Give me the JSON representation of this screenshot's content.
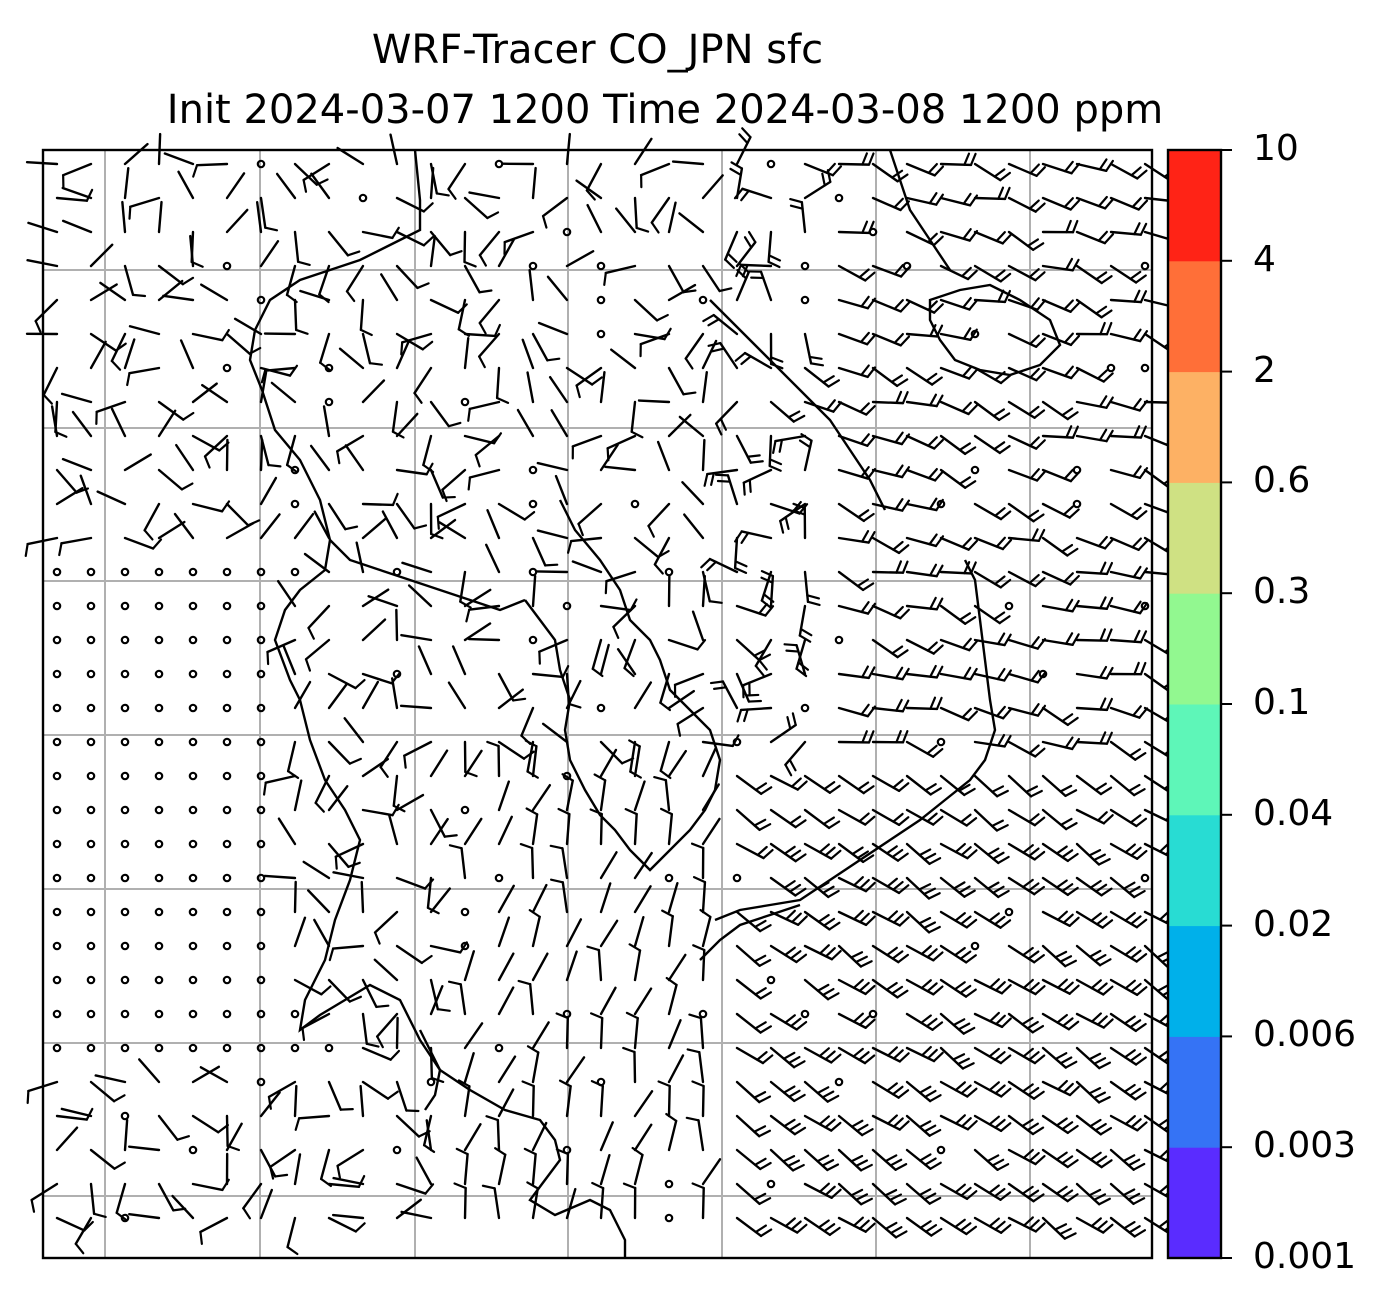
{
  "title": {
    "line1": "WRF-Tracer CO_JPN sfc",
    "line2": "Init 2024-03-07 1200 Time 2024-03-08 1200 ppm"
  },
  "colorbar": {
    "levels": [
      "0.001",
      "0.003",
      "0.006",
      "0.02",
      "0.04",
      "0.1",
      "0.3",
      "0.6",
      "2",
      "4",
      "10"
    ],
    "colors": [
      "#5a2cff",
      "#3573f5",
      "#00b0ea",
      "#28dcd3",
      "#5ef6b8",
      "#92f890",
      "#cfe183",
      "#fdb164",
      "#ff6f38",
      "#ff2316"
    ]
  },
  "map": {
    "background": "#ffffff",
    "gridline_color": "#b0b0b0",
    "coastline_color": "#000000",
    "barb_color": "#000000"
  }
}
